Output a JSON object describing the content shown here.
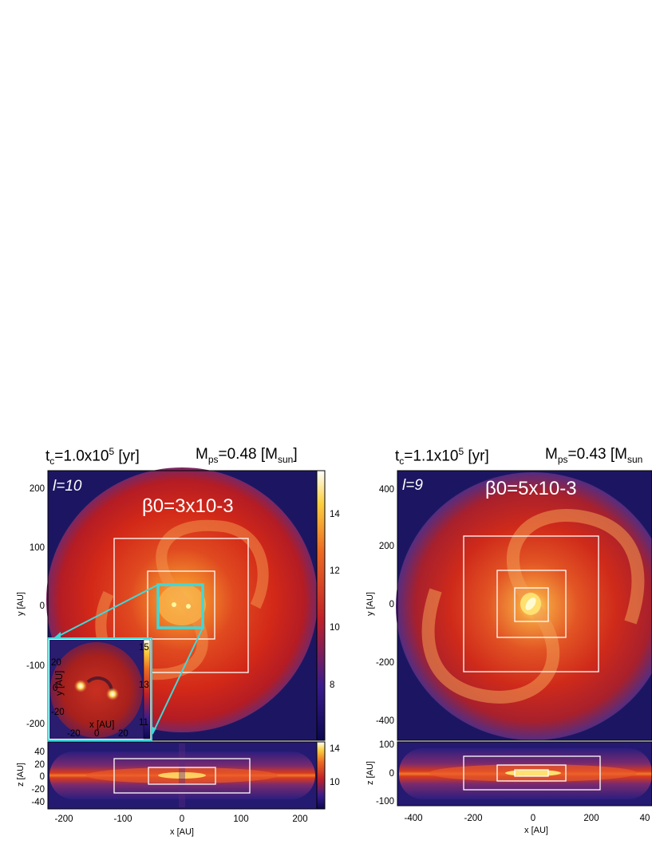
{
  "left_panel": {
    "time_prefix": "t",
    "time_sub": "c",
    "time_value": "=1.0x10",
    "time_exp": "5",
    "time_unit": " [yr]",
    "mass_prefix": "M",
    "mass_sub": "ps",
    "mass_value": "=0.48 [M",
    "mass_unit_sub": "sun",
    "mass_close": "]",
    "level": "l=10",
    "beta": "β0=3x10-3",
    "y_ticks": [
      "200",
      "100",
      "0",
      "-100",
      "-200"
    ],
    "x_ticks": [
      "-200",
      "-100",
      "0",
      "100",
      "200"
    ],
    "z_ticks": [
      "40",
      "20",
      "0",
      "-20",
      "-40"
    ],
    "cbar_top_ticks": [
      "14",
      "12",
      "10",
      "8"
    ],
    "cbar_bottom_ticks": [
      "14",
      "10"
    ],
    "ylabel": "y [AU]",
    "xlabel": "x [AU]",
    "zlabel": "z [AU]",
    "inset": {
      "y_ticks": [
        "20",
        "0",
        "-20"
      ],
      "x_ticks": [
        "-20",
        "0",
        "20"
      ],
      "cbar_ticks": [
        "15",
        "13",
        "11"
      ],
      "xlabel": "x [AU]",
      "ylabel": "y [AU]"
    }
  },
  "right_panel": {
    "time_prefix": "t",
    "time_sub": "c",
    "time_value": "=1.1x10",
    "time_exp": "5",
    "time_unit": " [yr]",
    "mass_prefix": "M",
    "mass_sub": "ps",
    "mass_value": "=0.43 [M",
    "mass_unit_sub": "sun",
    "level": "l=9",
    "beta": "β0=5x10-3",
    "y_ticks": [
      "400",
      "200",
      "0",
      "-200",
      "-400"
    ],
    "x_ticks": [
      "-400",
      "-200",
      "0",
      "200",
      "40"
    ],
    "z_ticks": [
      "100",
      "0",
      "-100"
    ],
    "ylabel": "y [AU]",
    "xlabel": "x [AU]",
    "zlabel": "z [AU]"
  },
  "colors": {
    "background_outer": "#1a1464",
    "disk_red": "#d42418",
    "spiral_orange": "#f08a3c",
    "core_yellow": "#ffe060",
    "inset_frame": "#40d8d8"
  }
}
